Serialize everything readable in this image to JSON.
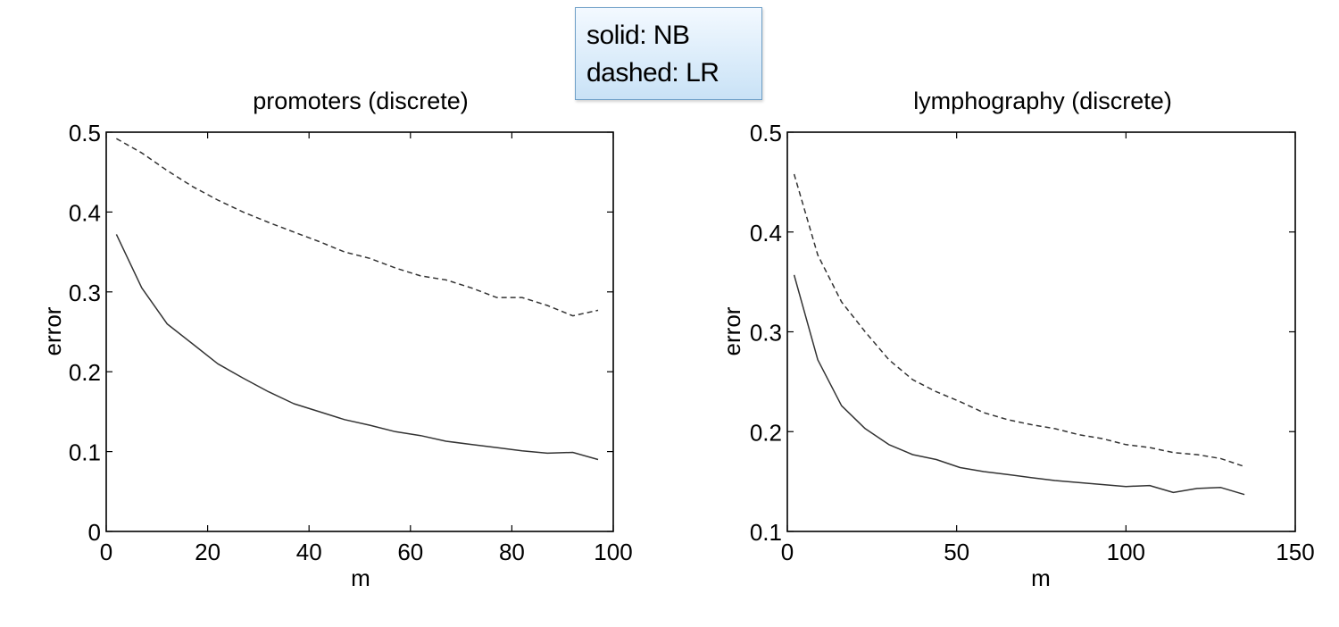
{
  "legend": {
    "line1": "solid: NB",
    "line2": "dashed: LR"
  },
  "chart_data": [
    {
      "type": "line",
      "title": "promoters (discrete)",
      "xlabel": "m",
      "ylabel": "error",
      "xlim": [
        0,
        100
      ],
      "ylim": [
        0,
        0.5
      ],
      "xticks": [
        0,
        20,
        40,
        60,
        80,
        100
      ],
      "xtick_labels": [
        "0",
        "20",
        "40",
        "60",
        "80",
        "100"
      ],
      "yticks": [
        0,
        0.1,
        0.2,
        0.3,
        0.4,
        0.5
      ],
      "ytick_labels": [
        "0",
        "0.1",
        "0.2",
        "0.3",
        "0.4",
        "0.5"
      ],
      "grid": false,
      "series": [
        {
          "style": "solid",
          "color": "#333333",
          "x": [
            2,
            7,
            12,
            17,
            22,
            27,
            32,
            37,
            42,
            47,
            52,
            57,
            62,
            67,
            72,
            77,
            82,
            87,
            92,
            97
          ],
          "y": [
            0.372,
            0.305,
            0.26,
            0.235,
            0.21,
            0.192,
            0.175,
            0.16,
            0.15,
            0.14,
            0.133,
            0.125,
            0.12,
            0.113,
            0.109,
            0.105,
            0.101,
            0.098,
            0.099,
            0.09
          ]
        },
        {
          "style": "dashed",
          "color": "#333333",
          "x": [
            2,
            7,
            12,
            17,
            22,
            27,
            32,
            37,
            42,
            47,
            52,
            57,
            62,
            67,
            72,
            77,
            82,
            87,
            92,
            97
          ],
          "y": [
            0.492,
            0.474,
            0.452,
            0.432,
            0.415,
            0.4,
            0.387,
            0.375,
            0.363,
            0.35,
            0.342,
            0.33,
            0.32,
            0.315,
            0.305,
            0.293,
            0.293,
            0.283,
            0.27,
            0.277
          ]
        }
      ]
    },
    {
      "type": "line",
      "title": "lymphography (discrete)",
      "xlabel": "m",
      "ylabel": "error",
      "xlim": [
        0,
        150
      ],
      "ylim": [
        0.1,
        0.5
      ],
      "xticks": [
        0,
        50,
        100,
        150
      ],
      "xtick_labels": [
        "0",
        "50",
        "100",
        "150"
      ],
      "yticks": [
        0.1,
        0.2,
        0.3,
        0.4,
        0.5
      ],
      "ytick_labels": [
        "0.1",
        "0.2",
        "0.3",
        "0.4",
        "0.5"
      ],
      "grid": false,
      "series": [
        {
          "style": "solid",
          "color": "#333333",
          "x": [
            2,
            9,
            16,
            23,
            30,
            37,
            44,
            51,
            58,
            65,
            72,
            79,
            86,
            93,
            100,
            107,
            114,
            121,
            128,
            135
          ],
          "y": [
            0.357,
            0.272,
            0.226,
            0.203,
            0.187,
            0.177,
            0.172,
            0.164,
            0.16,
            0.157,
            0.154,
            0.151,
            0.149,
            0.147,
            0.145,
            0.146,
            0.139,
            0.143,
            0.144,
            0.137
          ]
        },
        {
          "style": "dashed",
          "color": "#333333",
          "x": [
            2,
            9,
            16,
            23,
            30,
            37,
            44,
            51,
            58,
            65,
            72,
            79,
            86,
            93,
            100,
            107,
            114,
            121,
            128,
            135
          ],
          "y": [
            0.458,
            0.377,
            0.33,
            0.3,
            0.272,
            0.252,
            0.24,
            0.23,
            0.219,
            0.212,
            0.207,
            0.203,
            0.197,
            0.193,
            0.187,
            0.184,
            0.179,
            0.177,
            0.173,
            0.165
          ]
        }
      ]
    }
  ]
}
